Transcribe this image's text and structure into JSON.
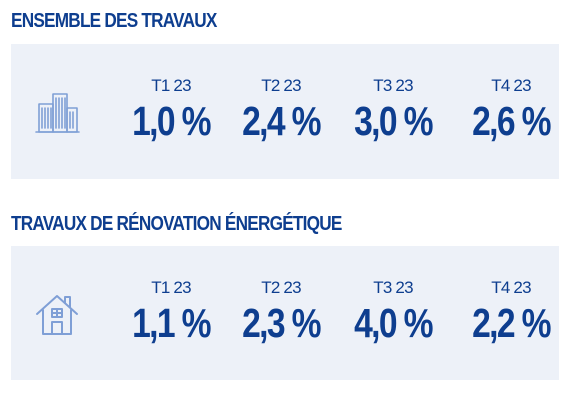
{
  "colors": {
    "accent": "#0e3e8f",
    "panel_background": "#edf1f8",
    "icon_stroke": "#7f9fd6"
  },
  "sections": [
    {
      "title": "ENSEMBLE DES TRAVAUX",
      "icon": "buildings-icon",
      "stats": [
        {
          "label": "T1 23",
          "value": "1,0 %"
        },
        {
          "label": "T2 23",
          "value": "2,4 %"
        },
        {
          "label": "T3 23",
          "value": "3,0 %"
        },
        {
          "label": "T4 23",
          "value": "2,6 %"
        }
      ]
    },
    {
      "title": "TRAVAUX DE RÉNOVATION ÉNERGÉTIQUE",
      "icon": "house-icon",
      "stats": [
        {
          "label": "T1 23",
          "value": "1,1 %"
        },
        {
          "label": "T2 23",
          "value": "2,3 %"
        },
        {
          "label": "T3 23",
          "value": "4,0 %"
        },
        {
          "label": "T4 23",
          "value": "2,2 %"
        }
      ]
    }
  ]
}
